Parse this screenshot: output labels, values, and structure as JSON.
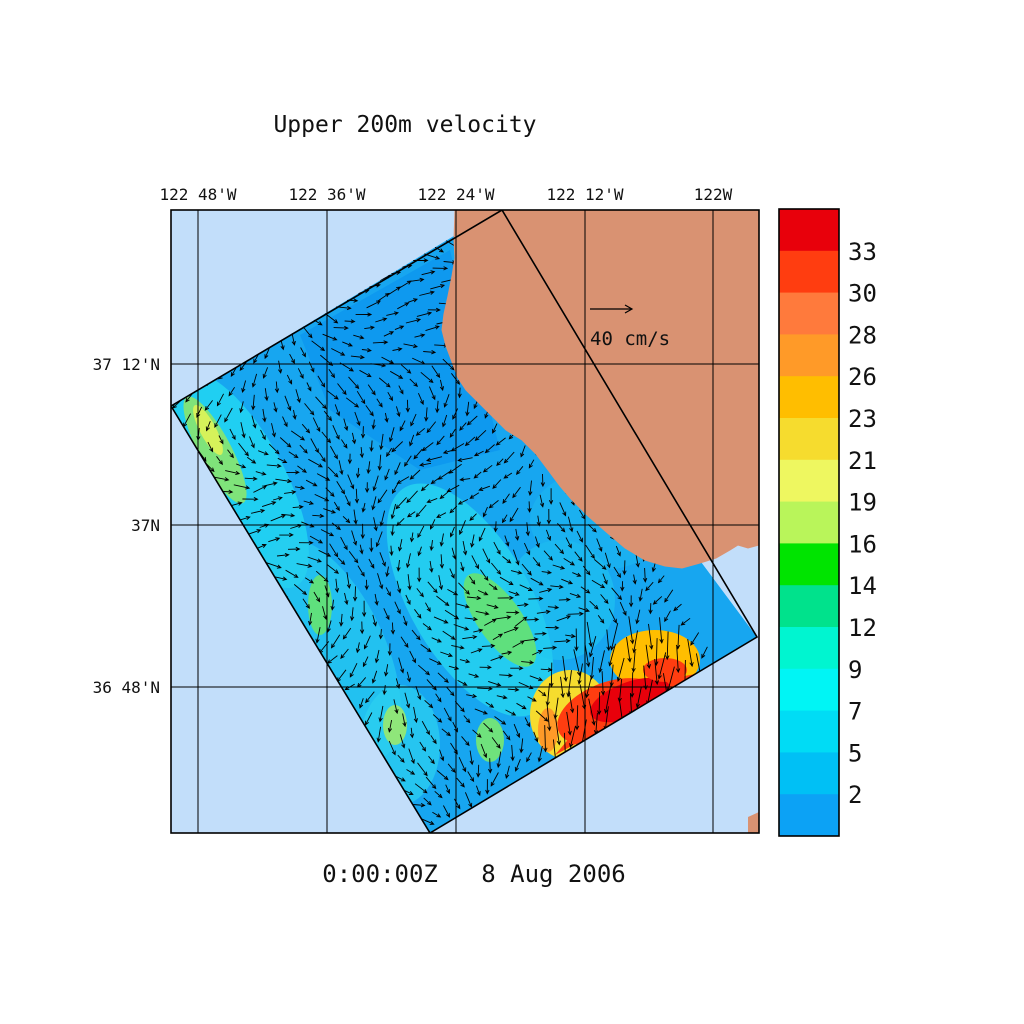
{
  "title": "Upper 200m velocity",
  "timestamp": "0:00:00Z   8 Aug 2006",
  "lon_labels": [
    "122 48'W",
    "122 36'W",
    "122 24'W",
    "122 12'W",
    "122W"
  ],
  "lat_labels": [
    "37 12'N",
    "37N",
    "36 48'N"
  ],
  "reference_vector": {
    "label": "40 cm/s",
    "magnitude_cm_s": 40
  },
  "colorbar": {
    "tick_labels": [
      "33",
      "30",
      "28",
      "26",
      "23",
      "21",
      "19",
      "16",
      "14",
      "12",
      "9",
      "7",
      "5",
      "2"
    ],
    "colors": [
      "#e8000b",
      "#ff3d10",
      "#ff7a3c",
      "#ff9a28",
      "#ffbe00",
      "#f6dc2e",
      "#eef760",
      "#b9f55a",
      "#00e400",
      "#00e28c",
      "#00f5d0",
      "#00f5f5",
      "#00dcf5",
      "#00c0f5",
      "#0ca2f5"
    ]
  },
  "colors": {
    "ocean_outside": "#c2defa",
    "land": "#d99272",
    "domain_base": "#17a6f0",
    "grid": "#000000"
  }
}
